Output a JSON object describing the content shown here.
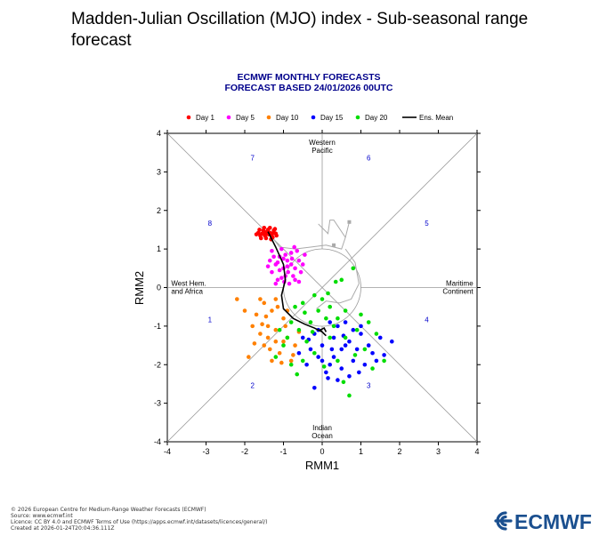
{
  "page": {
    "title": "Madden-Julian Oscillation (MJO) index - Sub-seasonal range forecast"
  },
  "chart_data": {
    "type": "scatter",
    "title": "ECMWF MONTHLY FORECASTS",
    "subtitle": "FORECAST  BASED 24/01/2026 00UTC",
    "xlabel": "RMM1",
    "ylabel": "RMM2",
    "xlim": [
      -4,
      4
    ],
    "ylim": [
      -4,
      4
    ],
    "xticks": [
      "-4",
      "-3",
      "-2",
      "-1",
      "0",
      "1",
      "2",
      "3",
      "4"
    ],
    "yticks": [
      "4",
      "3",
      "2",
      "1",
      "0",
      "-1",
      "-2",
      "-3",
      "-4"
    ],
    "legend_position": "top",
    "legend": [
      {
        "label": "Day 1",
        "color": "#ff0000"
      },
      {
        "label": "Day 5",
        "color": "#ff00ff"
      },
      {
        "label": "Day 10",
        "color": "#ff8000"
      },
      {
        "label": "Day 15",
        "color": "#0000ff"
      },
      {
        "label": "Day 20",
        "color": "#00dd00"
      },
      {
        "label": "Ens. Mean",
        "color": "#000000"
      }
    ],
    "regions": [
      {
        "label": "Western",
        "label2": "Pacific",
        "x": 0,
        "y": 3.7
      },
      {
        "label": "Indian",
        "label2": "Ocean",
        "x": 0,
        "y": -3.7
      },
      {
        "label": "West Hem.",
        "label2": "and Africa",
        "x": -3.9,
        "y": 0.05
      },
      {
        "label": "Maritime",
        "label2": "Continent",
        "x": 3.9,
        "y": 0.05
      }
    ],
    "phases": [
      {
        "label": "1",
        "x": -2.9,
        "y": -0.9
      },
      {
        "label": "2",
        "x": -1.8,
        "y": -2.6
      },
      {
        "label": "3",
        "x": 1.2,
        "y": -2.6
      },
      {
        "label": "4",
        "x": 2.7,
        "y": -0.9
      },
      {
        "label": "5",
        "x": 2.7,
        "y": 1.6
      },
      {
        "label": "6",
        "x": 1.2,
        "y": 3.3
      },
      {
        "label": "7",
        "x": -1.8,
        "y": 3.3
      },
      {
        "label": "8",
        "x": -2.9,
        "y": 1.6
      }
    ],
    "series": [
      {
        "name": "Day 1",
        "color": "#ff0000",
        "points": [
          [
            -1.55,
            1.4
          ],
          [
            -1.5,
            1.45
          ],
          [
            -1.45,
            1.38
          ],
          [
            -1.4,
            1.5
          ],
          [
            -1.35,
            1.42
          ],
          [
            -1.3,
            1.35
          ],
          [
            -1.25,
            1.48
          ],
          [
            -1.2,
            1.4
          ],
          [
            -1.6,
            1.35
          ],
          [
            -1.65,
            1.42
          ],
          [
            -1.7,
            1.38
          ],
          [
            -1.5,
            1.55
          ],
          [
            -1.45,
            1.28
          ],
          [
            -1.35,
            1.55
          ],
          [
            -1.28,
            1.3
          ],
          [
            -1.58,
            1.28
          ],
          [
            -1.42,
            1.45
          ],
          [
            -1.32,
            1.25
          ],
          [
            -1.22,
            1.52
          ],
          [
            -1.62,
            1.5
          ],
          [
            -1.18,
            1.35
          ],
          [
            -1.48,
            1.35
          ],
          [
            -1.38,
            1.38
          ],
          [
            -1.52,
            1.48
          ],
          [
            -1.26,
            1.42
          ]
        ]
      },
      {
        "name": "Day 5",
        "color": "#ff00ff",
        "points": [
          [
            -1.2,
            0.6
          ],
          [
            -1.1,
            0.8
          ],
          [
            -0.9,
            0.7
          ],
          [
            -1.0,
            0.5
          ],
          [
            -0.8,
            0.9
          ],
          [
            -1.3,
            0.4
          ],
          [
            -0.7,
            0.5
          ],
          [
            -0.95,
            0.3
          ],
          [
            -1.15,
            0.2
          ],
          [
            -0.6,
            0.7
          ],
          [
            -1.05,
            1.0
          ],
          [
            -0.85,
            0.1
          ],
          [
            -0.75,
            0.3
          ],
          [
            -1.4,
            0.55
          ],
          [
            -0.65,
            0.95
          ],
          [
            -1.25,
            0.8
          ],
          [
            -0.55,
            0.4
          ],
          [
            -0.9,
            0.55
          ],
          [
            -1.0,
            0.75
          ],
          [
            -0.8,
            0.6
          ],
          [
            -1.1,
            0.45
          ],
          [
            -0.7,
            0.2
          ],
          [
            -1.2,
            0.1
          ],
          [
            -0.5,
            0.6
          ],
          [
            -0.95,
            0.85
          ],
          [
            -1.35,
            0.7
          ],
          [
            -0.88,
            0.4
          ],
          [
            -0.78,
            0.75
          ],
          [
            -1.05,
            0.25
          ],
          [
            -0.6,
            0.15
          ],
          [
            -1.3,
            0.95
          ],
          [
            -0.45,
            0.85
          ],
          [
            -1.15,
            0.65
          ],
          [
            -0.98,
            0.15
          ],
          [
            -0.72,
            1.05
          ]
        ]
      },
      {
        "name": "Day 10",
        "color": "#ff8000",
        "points": [
          [
            -1.5,
            -0.4
          ],
          [
            -1.3,
            -0.6
          ],
          [
            -1.4,
            -1.0
          ],
          [
            -1.6,
            -1.2
          ],
          [
            -1.2,
            -1.4
          ],
          [
            -1.0,
            -0.8
          ],
          [
            -1.7,
            -0.7
          ],
          [
            -1.1,
            -1.7
          ],
          [
            -0.9,
            -1.3
          ],
          [
            -1.5,
            -1.5
          ],
          [
            -1.3,
            -1.9
          ],
          [
            -0.8,
            -1.9
          ],
          [
            -1.8,
            -1.0
          ],
          [
            -1.2,
            -1.1
          ],
          [
            -1.6,
            -0.3
          ],
          [
            -0.7,
            -1.5
          ],
          [
            -2.2,
            -0.3
          ],
          [
            -1.9,
            -1.8
          ],
          [
            -1.4,
            -1.3
          ],
          [
            -1.0,
            -1.4
          ],
          [
            -1.2,
            -0.3
          ],
          [
            -0.9,
            -0.6
          ],
          [
            -1.45,
            -0.75
          ],
          [
            -1.05,
            -1.95
          ],
          [
            -0.6,
            -1.15
          ],
          [
            -1.75,
            -1.45
          ],
          [
            -1.35,
            -1.6
          ],
          [
            -0.95,
            -1.0
          ],
          [
            -1.55,
            -0.95
          ],
          [
            -1.15,
            -0.5
          ],
          [
            -2.0,
            -0.6
          ],
          [
            -0.75,
            -1.75
          ]
        ]
      },
      {
        "name": "Day 15",
        "color": "#0000ff",
        "points": [
          [
            -0.2,
            -1.2
          ],
          [
            0.0,
            -1.5
          ],
          [
            0.3,
            -1.3
          ],
          [
            0.5,
            -1.6
          ],
          [
            -0.1,
            -1.8
          ],
          [
            0.2,
            -2.0
          ],
          [
            0.7,
            -1.4
          ],
          [
            0.4,
            -1.0
          ],
          [
            -0.3,
            -1.6
          ],
          [
            0.8,
            -1.9
          ],
          [
            1.0,
            -1.2
          ],
          [
            0.6,
            -0.9
          ],
          [
            -0.4,
            -2.0
          ],
          [
            0.1,
            -2.2
          ],
          [
            0.9,
            -1.6
          ],
          [
            1.2,
            -1.5
          ],
          [
            1.4,
            -1.9
          ],
          [
            0.3,
            -1.8
          ],
          [
            -0.2,
            -2.6
          ],
          [
            0.5,
            -2.1
          ],
          [
            1.8,
            -1.4
          ],
          [
            0.7,
            -2.3
          ],
          [
            1.0,
            -1.0
          ],
          [
            -0.5,
            -1.3
          ],
          [
            0.2,
            -0.9
          ],
          [
            1.1,
            -2.0
          ],
          [
            0.0,
            -1.9
          ],
          [
            -0.6,
            -1.7
          ],
          [
            0.8,
            -1.1
          ],
          [
            1.5,
            -1.3
          ],
          [
            0.4,
            -2.4
          ],
          [
            -0.1,
            -1.1
          ],
          [
            1.3,
            -1.7
          ],
          [
            0.6,
            -1.5
          ],
          [
            0.25,
            -1.6
          ],
          [
            -0.35,
            -1.35
          ],
          [
            0.55,
            -1.25
          ],
          [
            0.95,
            -2.2
          ],
          [
            1.6,
            -1.75
          ],
          [
            0.15,
            -2.35
          ]
        ]
      },
      {
        "name": "Day 20",
        "color": "#00dd00",
        "points": [
          [
            0.8,
            0.5
          ],
          [
            0.5,
            0.2
          ],
          [
            -0.2,
            -0.2
          ],
          [
            0.2,
            -0.5
          ],
          [
            -0.5,
            -0.4
          ],
          [
            0.4,
            -0.8
          ],
          [
            -0.8,
            -0.9
          ],
          [
            -0.6,
            -1.1
          ],
          [
            1.0,
            -0.7
          ],
          [
            0.0,
            -0.3
          ],
          [
            -0.3,
            -0.9
          ],
          [
            0.6,
            -0.6
          ],
          [
            -1.0,
            -1.5
          ],
          [
            -0.4,
            -1.4
          ],
          [
            0.3,
            -1.0
          ],
          [
            -1.2,
            -1.8
          ],
          [
            1.3,
            -2.1
          ],
          [
            1.4,
            -1.2
          ],
          [
            -0.8,
            -2.0
          ],
          [
            0.7,
            -2.8
          ],
          [
            0.2,
            -1.3
          ],
          [
            -0.1,
            -0.6
          ],
          [
            0.9,
            -1.1
          ],
          [
            -0.7,
            -0.5
          ],
          [
            0.4,
            -1.9
          ],
          [
            -0.5,
            -1.9
          ],
          [
            1.1,
            -1.6
          ],
          [
            -0.2,
            -1.7
          ],
          [
            0.1,
            -0.8
          ],
          [
            -0.9,
            -1.3
          ],
          [
            0.6,
            -1.3
          ],
          [
            1.6,
            -1.9
          ],
          [
            0.35,
            0.15
          ],
          [
            0.15,
            -0.15
          ],
          [
            -0.45,
            -0.65
          ],
          [
            1.2,
            -0.9
          ],
          [
            -0.25,
            -1.15
          ],
          [
            0.55,
            -2.45
          ],
          [
            -0.65,
            -2.25
          ],
          [
            0.85,
            -1.75
          ],
          [
            -1.1,
            -1.1
          ],
          [
            0.05,
            -2.05
          ]
        ]
      }
    ],
    "ensemble_mean": [
      [
        -1.4,
        1.45
      ],
      [
        -1.2,
        1.05
      ],
      [
        -1.0,
        0.6
      ],
      [
        -0.95,
        0.2
      ],
      [
        -1.05,
        -0.2
      ],
      [
        -1.0,
        -0.55
      ],
      [
        -0.75,
        -0.8
      ],
      [
        -0.45,
        -0.95
      ],
      [
        -0.2,
        -1.05
      ],
      [
        0.0,
        -1.15
      ],
      [
        0.1,
        -1.25
      ],
      [
        0.05,
        -1.2
      ],
      [
        -0.05,
        -1.1
      ],
      [
        0.05,
        -1.05
      ],
      [
        0.1,
        -1.15
      ]
    ],
    "analysis_track": [
      [
        0.7,
        1.7
      ],
      [
        0.6,
        1.3
      ],
      [
        0.5,
        1.0
      ],
      [
        0.1,
        1.1
      ],
      [
        -0.3,
        1.05
      ],
      [
        -0.7,
        1.0
      ],
      [
        -1.1,
        1.05
      ],
      [
        -1.4,
        1.45
      ]
    ],
    "analysis_branch": [
      [
        0.6,
        1.3
      ],
      [
        0.3,
        1.75
      ],
      [
        0.2,
        1.75
      ],
      [
        0.15,
        1.4
      ],
      [
        -0.1,
        1.65
      ]
    ],
    "analysis_inner": [
      [
        0.6,
        1.0
      ],
      [
        0.85,
        0.65
      ],
      [
        0.95,
        0.1
      ],
      [
        0.75,
        -0.3
      ],
      [
        0.45,
        -0.4
      ],
      [
        0.1,
        -0.35
      ],
      [
        -0.15,
        -0.55
      ]
    ]
  },
  "footer": {
    "line1": "© 2026 European Centre for Medium-Range Weather Forecasts (ECMWF)",
    "line2": "Source: www.ecmwf.int",
    "line3": "Licence: CC BY 4.0 and ECMWF Terms of Use (https://apps.ecmwf.int/datasets/licences/general/)",
    "line4": "Created at 2026-01-24T20:04:36.111Z"
  },
  "logo": {
    "text": "ECMWF",
    "color": "#1a4f8f"
  }
}
